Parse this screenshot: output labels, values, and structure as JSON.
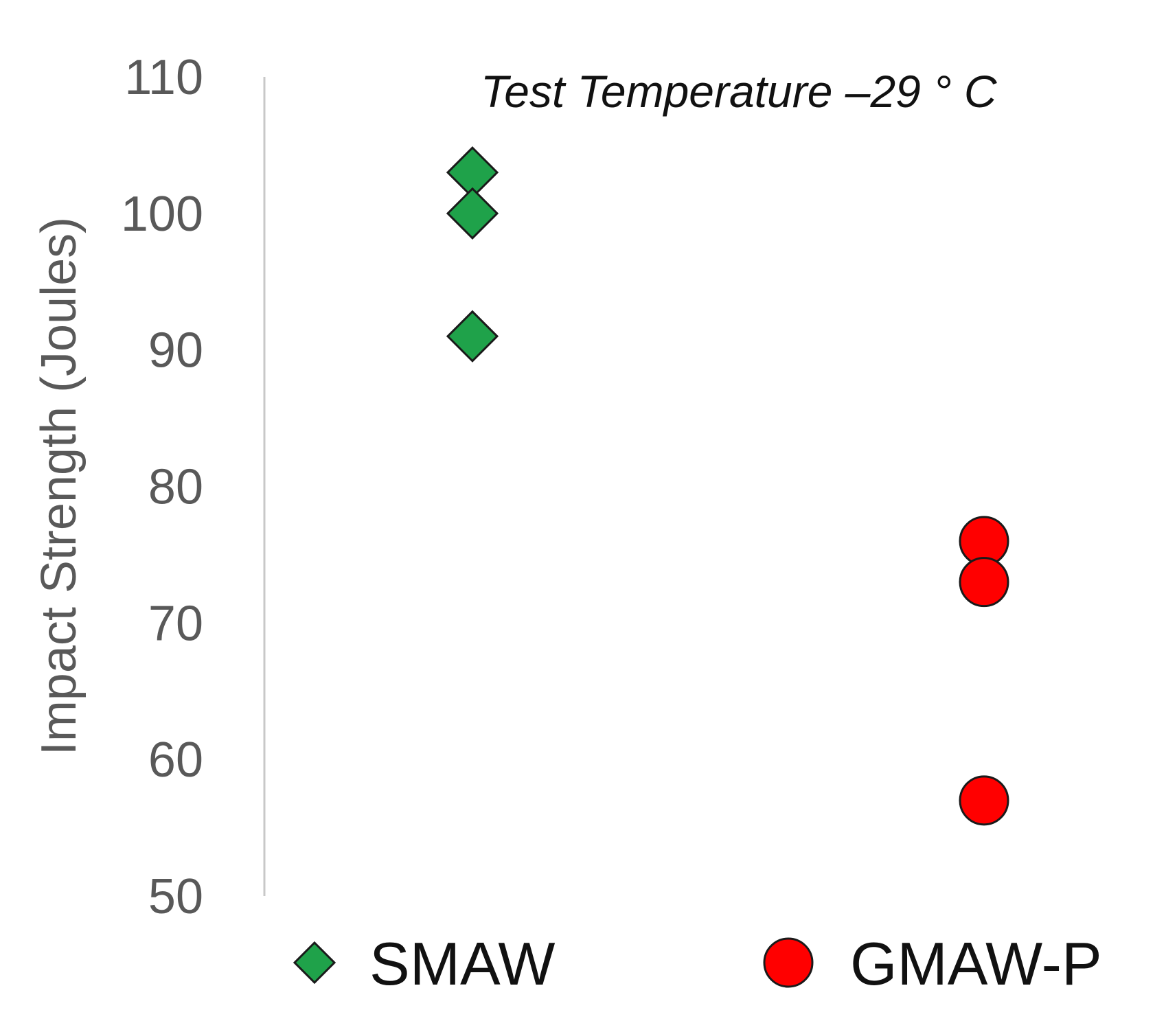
{
  "chart_data": {
    "type": "scatter",
    "title": "",
    "ylabel": "Impact Strength (Joules)",
    "xlabel": "",
    "annotation": "Test Temperature  –29 ° C",
    "ylim": [
      50,
      110
    ],
    "yticks": [
      "110",
      "100",
      "90",
      "80",
      "70",
      "60",
      "50"
    ],
    "grid": false,
    "legend_position": "bottom",
    "series": [
      {
        "name": "SMAW",
        "marker": "diamond",
        "color": "#1fa24a",
        "x": [
          1,
          1,
          1
        ],
        "values": [
          103,
          100,
          91
        ]
      },
      {
        "name": "GMAW-P",
        "marker": "circle",
        "color": "#ff0000",
        "x": [
          2,
          2,
          2
        ],
        "values": [
          76,
          73,
          57
        ]
      }
    ]
  }
}
